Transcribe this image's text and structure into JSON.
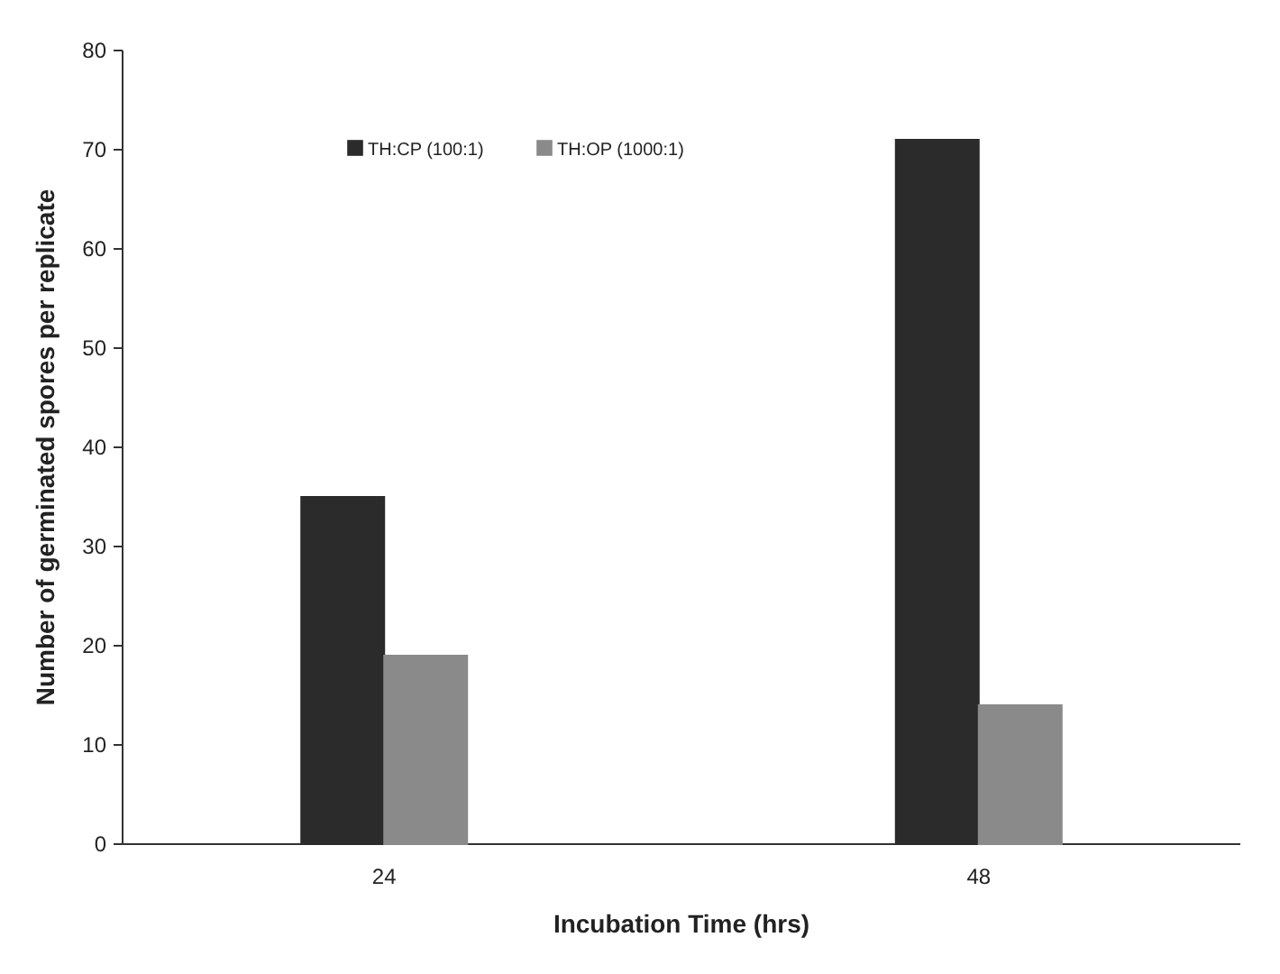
{
  "chart_data": {
    "type": "bar",
    "xlabel": "Incubation Time (hrs)",
    "ylabel": "Number of germinated spores per replicate",
    "categories": [
      "24",
      "48"
    ],
    "series": [
      {
        "name": "TH:CP (100:1)",
        "color": "#2b2b2b",
        "values": [
          35,
          71
        ]
      },
      {
        "name": "TH:OP (1000:1)",
        "color": "#8a8a8a",
        "values": [
          19,
          14
        ]
      }
    ],
    "ylim": [
      0,
      80
    ],
    "yticks": [
      0,
      10,
      20,
      30,
      40,
      50,
      60,
      70,
      80
    ],
    "grid": false,
    "legend": "top"
  }
}
